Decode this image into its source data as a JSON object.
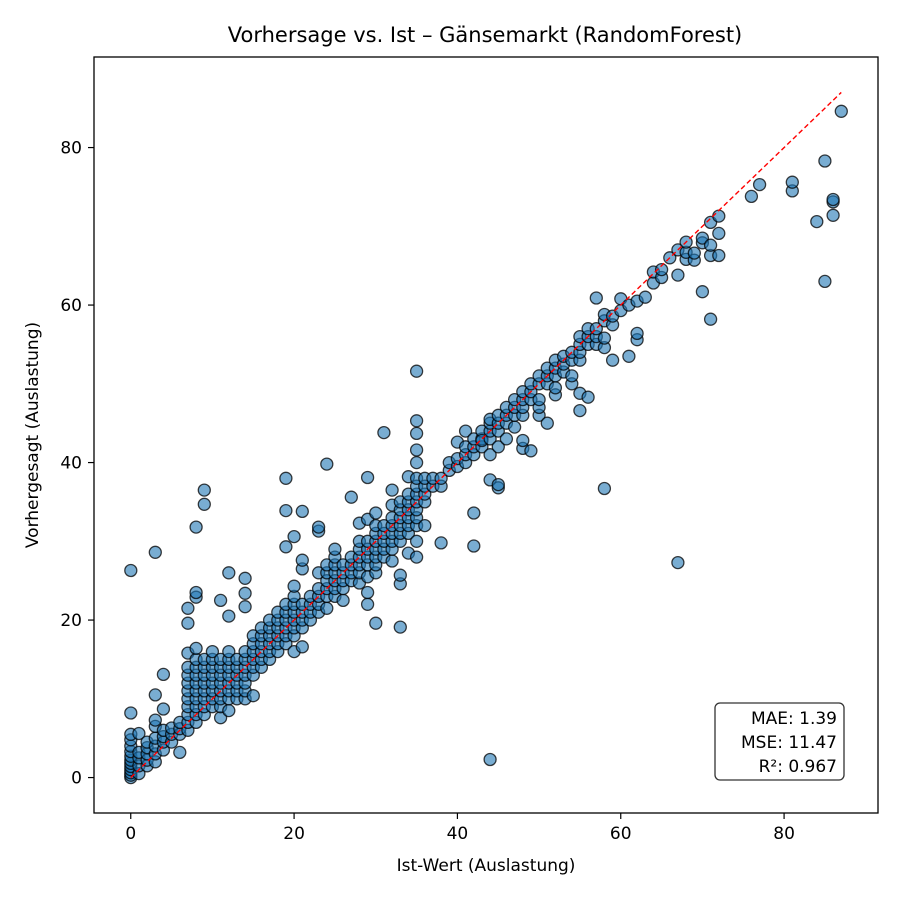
{
  "chart_data": {
    "type": "scatter",
    "title": "Vorhersage vs. Ist – Gänsemarkt (RandomForest)",
    "xlabel": "Ist-Wert (Auslastung)",
    "ylabel": "Vorhergesagt (Auslastung)",
    "xlim": [
      -4.5,
      91.5
    ],
    "ylim": [
      -4.5,
      91.5
    ],
    "xticks": [
      0,
      20,
      40,
      60,
      80
    ],
    "yticks": [
      0,
      20,
      40,
      60,
      80
    ],
    "grid": false,
    "point_color": "#1f77b4",
    "point_edge_color": "#000000",
    "reference_line": {
      "x": [
        0,
        87
      ],
      "y": [
        0,
        87
      ],
      "color": "#ff0000",
      "style": "dashed"
    },
    "stats": {
      "mae": "MAE: 1.39",
      "mse": "MSE: 11.47",
      "r2": "R²: 0.967"
    },
    "points": [
      [
        0,
        0
      ],
      [
        0,
        0.3
      ],
      [
        0,
        0.6
      ],
      [
        0,
        1
      ],
      [
        0,
        1.4
      ],
      [
        0,
        1.8
      ],
      [
        0,
        2.2
      ],
      [
        0,
        2.7
      ],
      [
        0,
        3.3
      ],
      [
        0,
        4
      ],
      [
        0,
        4.8
      ],
      [
        0,
        5.5
      ],
      [
        0,
        8.2
      ],
      [
        0,
        26.3
      ],
      [
        1,
        0.5
      ],
      [
        1,
        1.5
      ],
      [
        1,
        2.5
      ],
      [
        1,
        3.2
      ],
      [
        1,
        5.6
      ],
      [
        2,
        1.5
      ],
      [
        2,
        2.2
      ],
      [
        2,
        3
      ],
      [
        2,
        3.8
      ],
      [
        2,
        4.5
      ],
      [
        3,
        2
      ],
      [
        3,
        3
      ],
      [
        3,
        4
      ],
      [
        3,
        5
      ],
      [
        3,
        6.5
      ],
      [
        3,
        7.3
      ],
      [
        3,
        10.5
      ],
      [
        3,
        28.6
      ],
      [
        4,
        3.5
      ],
      [
        4,
        4.5
      ],
      [
        4,
        5.2
      ],
      [
        4,
        6
      ],
      [
        4,
        8.7
      ],
      [
        4,
        13.1
      ],
      [
        5,
        4.5
      ],
      [
        5,
        5.5
      ],
      [
        5,
        6.3
      ],
      [
        6,
        3.2
      ],
      [
        6,
        5.5
      ],
      [
        6,
        6.2
      ],
      [
        6,
        7
      ],
      [
        7,
        6
      ],
      [
        7,
        7
      ],
      [
        7,
        8
      ],
      [
        7,
        9
      ],
      [
        7,
        10
      ],
      [
        7,
        11
      ],
      [
        7,
        12
      ],
      [
        7,
        13
      ],
      [
        7,
        14
      ],
      [
        7,
        15.8
      ],
      [
        7,
        19.6
      ],
      [
        7,
        21.5
      ],
      [
        8,
        7
      ],
      [
        8,
        8
      ],
      [
        8,
        9
      ],
      [
        8,
        10
      ],
      [
        8,
        11
      ],
      [
        8,
        12
      ],
      [
        8,
        13
      ],
      [
        8,
        14
      ],
      [
        8,
        15
      ],
      [
        8,
        16.4
      ],
      [
        8,
        22.9
      ],
      [
        8,
        23.5
      ],
      [
        8,
        31.8
      ],
      [
        9,
        8
      ],
      [
        9,
        9
      ],
      [
        9,
        10
      ],
      [
        9,
        11
      ],
      [
        9,
        12
      ],
      [
        9,
        13
      ],
      [
        9,
        14
      ],
      [
        9,
        15
      ],
      [
        9,
        34.7
      ],
      [
        9,
        36.5
      ],
      [
        10,
        9
      ],
      [
        10,
        10
      ],
      [
        10,
        11
      ],
      [
        10,
        12
      ],
      [
        10,
        13
      ],
      [
        10,
        14
      ],
      [
        10,
        15
      ],
      [
        10,
        16
      ],
      [
        11,
        7.6
      ],
      [
        11,
        9
      ],
      [
        11,
        10
      ],
      [
        11,
        11
      ],
      [
        11,
        12
      ],
      [
        11,
        13
      ],
      [
        11,
        14
      ],
      [
        11,
        15
      ],
      [
        11,
        22.5
      ],
      [
        12,
        8.5
      ],
      [
        12,
        10
      ],
      [
        12,
        11
      ],
      [
        12,
        12
      ],
      [
        12,
        13
      ],
      [
        12,
        14
      ],
      [
        12,
        15
      ],
      [
        12,
        16
      ],
      [
        12,
        20.5
      ],
      [
        12,
        26
      ],
      [
        13,
        10
      ],
      [
        13,
        11
      ],
      [
        13,
        12
      ],
      [
        13,
        13
      ],
      [
        13,
        14
      ],
      [
        13,
        15
      ],
      [
        14,
        10
      ],
      [
        14,
        11
      ],
      [
        14,
        12
      ],
      [
        14,
        13
      ],
      [
        14,
        14
      ],
      [
        14,
        15
      ],
      [
        14,
        16
      ],
      [
        14,
        21.7
      ],
      [
        14,
        23.4
      ],
      [
        14,
        25.3
      ],
      [
        15,
        10.4
      ],
      [
        15,
        13
      ],
      [
        15,
        14
      ],
      [
        15,
        15
      ],
      [
        15,
        16
      ],
      [
        15,
        17
      ],
      [
        15,
        18
      ],
      [
        16,
        14
      ],
      [
        16,
        15
      ],
      [
        16,
        16
      ],
      [
        16,
        17
      ],
      [
        16,
        18
      ],
      [
        16,
        19
      ],
      [
        17,
        15
      ],
      [
        17,
        16
      ],
      [
        17,
        17
      ],
      [
        17,
        18
      ],
      [
        17,
        19
      ],
      [
        17,
        20
      ],
      [
        18,
        16
      ],
      [
        18,
        17
      ],
      [
        18,
        18
      ],
      [
        18,
        19
      ],
      [
        18,
        20
      ],
      [
        18,
        21
      ],
      [
        19,
        17
      ],
      [
        19,
        18
      ],
      [
        19,
        19
      ],
      [
        19,
        20
      ],
      [
        19,
        21
      ],
      [
        19,
        22
      ],
      [
        19,
        29.3
      ],
      [
        19,
        33.9
      ],
      [
        19,
        38
      ],
      [
        20,
        16
      ],
      [
        20,
        18
      ],
      [
        20,
        19
      ],
      [
        20,
        20
      ],
      [
        20,
        21
      ],
      [
        20,
        22
      ],
      [
        20,
        23
      ],
      [
        20,
        24.3
      ],
      [
        20,
        30.6
      ],
      [
        21,
        16.6
      ],
      [
        21,
        19
      ],
      [
        21,
        20
      ],
      [
        21,
        21
      ],
      [
        21,
        22
      ],
      [
        21,
        26.5
      ],
      [
        21,
        27.6
      ],
      [
        21,
        33.8
      ],
      [
        22,
        20
      ],
      [
        22,
        21
      ],
      [
        22,
        22
      ],
      [
        22,
        23
      ],
      [
        23,
        21
      ],
      [
        23,
        22
      ],
      [
        23,
        23
      ],
      [
        23,
        24
      ],
      [
        23,
        26
      ],
      [
        23,
        31.3
      ],
      [
        23,
        31.8
      ],
      [
        24,
        21.5
      ],
      [
        24,
        23
      ],
      [
        24,
        24
      ],
      [
        24,
        25
      ],
      [
        24,
        26
      ],
      [
        24,
        27
      ],
      [
        24,
        39.8
      ],
      [
        25,
        23
      ],
      [
        25,
        24
      ],
      [
        25,
        25
      ],
      [
        25,
        26
      ],
      [
        25,
        27
      ],
      [
        25,
        28
      ],
      [
        25,
        29
      ],
      [
        26,
        22.5
      ],
      [
        26,
        24
      ],
      [
        26,
        25
      ],
      [
        26,
        26
      ],
      [
        26,
        27
      ],
      [
        27,
        25
      ],
      [
        27,
        26
      ],
      [
        27,
        27
      ],
      [
        27,
        28
      ],
      [
        27,
        35.6
      ],
      [
        28,
        24.7
      ],
      [
        28,
        26
      ],
      [
        28,
        27
      ],
      [
        28,
        28
      ],
      [
        28,
        29
      ],
      [
        28,
        30
      ],
      [
        28,
        32.3
      ],
      [
        29,
        22
      ],
      [
        29,
        23.5
      ],
      [
        29,
        25.5
      ],
      [
        29,
        27
      ],
      [
        29,
        28
      ],
      [
        29,
        29
      ],
      [
        29,
        30
      ],
      [
        29,
        32.8
      ],
      [
        29,
        38.1
      ],
      [
        30,
        19.6
      ],
      [
        30,
        26
      ],
      [
        30,
        27
      ],
      [
        30,
        28
      ],
      [
        30,
        29
      ],
      [
        30,
        30
      ],
      [
        30,
        31
      ],
      [
        30,
        32
      ],
      [
        30,
        33.6
      ],
      [
        31,
        28
      ],
      [
        31,
        29
      ],
      [
        31,
        30
      ],
      [
        31,
        31
      ],
      [
        31,
        32
      ],
      [
        31,
        43.8
      ],
      [
        32,
        27.5
      ],
      [
        32,
        29
      ],
      [
        32,
        30
      ],
      [
        32,
        31
      ],
      [
        32,
        32
      ],
      [
        32,
        33
      ],
      [
        32,
        34.6
      ],
      [
        32,
        36.5
      ],
      [
        33,
        19.1
      ],
      [
        33,
        24.6
      ],
      [
        33,
        25.7
      ],
      [
        33,
        30
      ],
      [
        33,
        31
      ],
      [
        33,
        32
      ],
      [
        33,
        33
      ],
      [
        33,
        34
      ],
      [
        33,
        35
      ],
      [
        34,
        28.5
      ],
      [
        34,
        31
      ],
      [
        34,
        32
      ],
      [
        34,
        33
      ],
      [
        34,
        34
      ],
      [
        34,
        35
      ],
      [
        34,
        36
      ],
      [
        34,
        38.2
      ],
      [
        35,
        28
      ],
      [
        35,
        30
      ],
      [
        35,
        32
      ],
      [
        35,
        33
      ],
      [
        35,
        34
      ],
      [
        35,
        35
      ],
      [
        35,
        36
      ],
      [
        35,
        37
      ],
      [
        35,
        38
      ],
      [
        35,
        40
      ],
      [
        35,
        41.6
      ],
      [
        35,
        43.7
      ],
      [
        35,
        45.3
      ],
      [
        35,
        51.6
      ],
      [
        36,
        32
      ],
      [
        36,
        35
      ],
      [
        36,
        36
      ],
      [
        36,
        37
      ],
      [
        36,
        38
      ],
      [
        37,
        37
      ],
      [
        37,
        38
      ],
      [
        38,
        29.8
      ],
      [
        38,
        37
      ],
      [
        38,
        38
      ],
      [
        39,
        39
      ],
      [
        39,
        40
      ],
      [
        40,
        39.5
      ],
      [
        40,
        40.5
      ],
      [
        40,
        42.6
      ],
      [
        41,
        40
      ],
      [
        41,
        41
      ],
      [
        41,
        42
      ],
      [
        41,
        44
      ],
      [
        42,
        29.4
      ],
      [
        42,
        33.6
      ],
      [
        42,
        41
      ],
      [
        42,
        42
      ],
      [
        42,
        43
      ],
      [
        43,
        42
      ],
      [
        43,
        43
      ],
      [
        43,
        44
      ],
      [
        43,
        42.8
      ],
      [
        44,
        2.3
      ],
      [
        44,
        37.8
      ],
      [
        44,
        41
      ],
      [
        44,
        43
      ],
      [
        44,
        44
      ],
      [
        44,
        45
      ],
      [
        44,
        45.5
      ],
      [
        45,
        36.8
      ],
      [
        45,
        37.2
      ],
      [
        45,
        42
      ],
      [
        45,
        44
      ],
      [
        45,
        45
      ],
      [
        45,
        46
      ],
      [
        46,
        43
      ],
      [
        46,
        45
      ],
      [
        46,
        46
      ],
      [
        46,
        47
      ],
      [
        47,
        44.5
      ],
      [
        47,
        46
      ],
      [
        47,
        47
      ],
      [
        47,
        48
      ],
      [
        48,
        41.8
      ],
      [
        48,
        42.8
      ],
      [
        48,
        46
      ],
      [
        48,
        47
      ],
      [
        48,
        48
      ],
      [
        48,
        49
      ],
      [
        49,
        41.5
      ],
      [
        49,
        48
      ],
      [
        49,
        49
      ],
      [
        49,
        50
      ],
      [
        50,
        46
      ],
      [
        50,
        47
      ],
      [
        50,
        48
      ],
      [
        50,
        50
      ],
      [
        50,
        51
      ],
      [
        51,
        45
      ],
      [
        51,
        50
      ],
      [
        51,
        51
      ],
      [
        51,
        52
      ],
      [
        52,
        48.6
      ],
      [
        52,
        49.5
      ],
      [
        52,
        51
      ],
      [
        52,
        52
      ],
      [
        52,
        53
      ],
      [
        53,
        51.5
      ],
      [
        53,
        52.5
      ],
      [
        53,
        53.5
      ],
      [
        54,
        50
      ],
      [
        54,
        51
      ],
      [
        54,
        53
      ],
      [
        54,
        54
      ],
      [
        55,
        46.6
      ],
      [
        55,
        48.8
      ],
      [
        55,
        53
      ],
      [
        55,
        54
      ],
      [
        55,
        55
      ],
      [
        55,
        56
      ],
      [
        56,
        48.3
      ],
      [
        56,
        55
      ],
      [
        56,
        56
      ],
      [
        56,
        57
      ],
      [
        57,
        55
      ],
      [
        57,
        56
      ],
      [
        57,
        57
      ],
      [
        57,
        60.9
      ],
      [
        58,
        36.7
      ],
      [
        58,
        54.6
      ],
      [
        58,
        55.8
      ],
      [
        58,
        58
      ],
      [
        58,
        58.8
      ],
      [
        59,
        53
      ],
      [
        59,
        57.5
      ],
      [
        59,
        58.6
      ],
      [
        60,
        59.3
      ],
      [
        60,
        60.8
      ],
      [
        61,
        53.5
      ],
      [
        61,
        60
      ],
      [
        62,
        55.6
      ],
      [
        62,
        56.4
      ],
      [
        62,
        60.5
      ],
      [
        63,
        61
      ],
      [
        64,
        62.8
      ],
      [
        64,
        64.2
      ],
      [
        65,
        63.5
      ],
      [
        65,
        64.5
      ],
      [
        66,
        66
      ],
      [
        67,
        27.3
      ],
      [
        67,
        63.8
      ],
      [
        67,
        67
      ],
      [
        68,
        65.8
      ],
      [
        68,
        66.7
      ],
      [
        68,
        68
      ],
      [
        69,
        65.7
      ],
      [
        69,
        66.6
      ],
      [
        70,
        61.7
      ],
      [
        70,
        67.9
      ],
      [
        70,
        68.5
      ],
      [
        71,
        58.2
      ],
      [
        71,
        66.3
      ],
      [
        71,
        67.6
      ],
      [
        71,
        70.5
      ],
      [
        72,
        66.3
      ],
      [
        72,
        69.1
      ],
      [
        72,
        71.3
      ],
      [
        76,
        73.8
      ],
      [
        77,
        75.3
      ],
      [
        81,
        74.5
      ],
      [
        81,
        75.6
      ],
      [
        84,
        70.6
      ],
      [
        85,
        63
      ],
      [
        85,
        78.3
      ],
      [
        86,
        71.4
      ],
      [
        86,
        73.1
      ],
      [
        86,
        73.4
      ],
      [
        87,
        84.6
      ]
    ]
  }
}
